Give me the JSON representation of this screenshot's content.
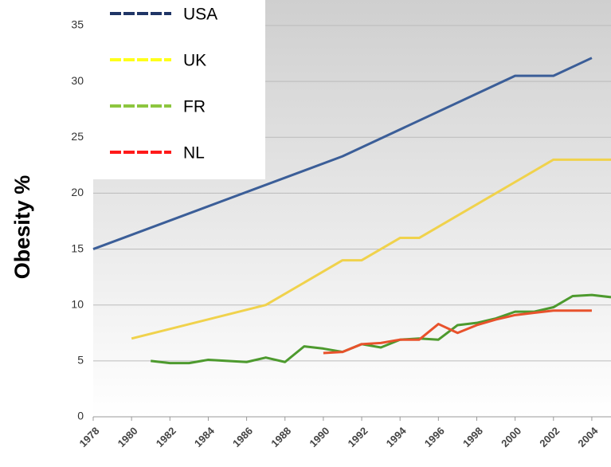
{
  "chart_data": {
    "type": "line",
    "y_label": "Obesity %",
    "xlim": [
      1978,
      2005
    ],
    "xticks": [
      1978,
      1980,
      1982,
      1984,
      1986,
      1988,
      1990,
      1992,
      1994,
      1996,
      1998,
      2000,
      2002,
      2004
    ],
    "ylim": [
      0,
      35
    ],
    "yticks": [
      0,
      5,
      10,
      15,
      20,
      25,
      30,
      35
    ],
    "grid": true,
    "legend": "top-left",
    "series": [
      {
        "name": "USA",
        "color": "#3b5e98",
        "legend_color": "#1f3566",
        "x": [
          1978,
          1991,
          2000,
          2002,
          2004
        ],
        "values": [
          15,
          23.3,
          30.5,
          30.5,
          32.1
        ]
      },
      {
        "name": "UK",
        "color": "#f0d24c",
        "legend_color": "#ffff1a",
        "x": [
          1980,
          1987,
          1991,
          1992,
          1994,
          1995,
          2002,
          2005
        ],
        "values": [
          7,
          10,
          14,
          14,
          16,
          16,
          23,
          23
        ]
      },
      {
        "name": "FR",
        "color": "#4d9a2e",
        "legend_color": "#8dc63f",
        "x": [
          1981,
          1982,
          1983,
          1984,
          1985,
          1986,
          1987,
          1988,
          1989,
          1990,
          1991,
          1992,
          1993,
          1994,
          1995,
          1996,
          1997,
          1998,
          1999,
          2000,
          2001,
          2002,
          2003,
          2004,
          2005
        ],
        "values": [
          5,
          4.8,
          4.8,
          5.1,
          5.0,
          4.9,
          5.3,
          4.9,
          6.3,
          6.1,
          5.8,
          6.5,
          6.2,
          6.9,
          7.0,
          6.9,
          8.2,
          8.4,
          8.8,
          9.4,
          9.4,
          9.8,
          10.8,
          10.9,
          10.7
        ]
      },
      {
        "name": "NL",
        "color": "#e8522c",
        "legend_color": "#ff1a1a",
        "x": [
          1990,
          1991,
          1992,
          1993,
          1994,
          1995,
          1996,
          1997,
          1998,
          1999,
          2000,
          2001,
          2002,
          2003,
          2004
        ],
        "values": [
          5.7,
          5.8,
          6.5,
          6.6,
          6.9,
          6.9,
          8.3,
          7.5,
          8.2,
          8.7,
          9.1,
          9.3,
          9.5,
          9.5,
          9.5
        ]
      }
    ]
  }
}
